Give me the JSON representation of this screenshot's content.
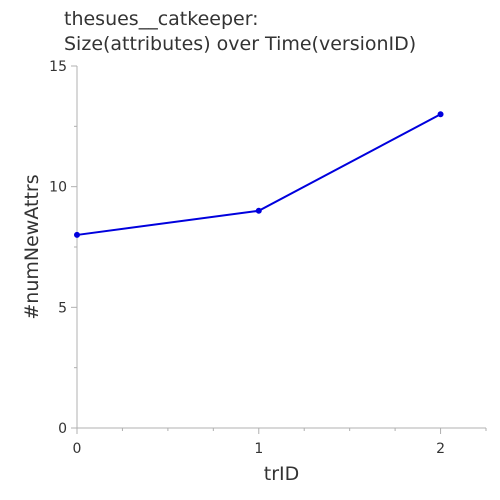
{
  "chart_data": {
    "type": "line",
    "title_line1": "thesues__catkeeper:",
    "title_line2": "Size(attributes) over Time(versionID)",
    "xlabel": "trID",
    "ylabel": "#numNewAttrs",
    "x": [
      0,
      1,
      2
    ],
    "series": [
      {
        "values": [
          8,
          9,
          13
        ],
        "color": "#0000dd"
      }
    ],
    "xlim": [
      0,
      2.25
    ],
    "ylim": [
      0,
      15
    ],
    "x_ticks": [
      0,
      1,
      2
    ],
    "x_minor_step": 0.25,
    "y_ticks": [
      0,
      5,
      10,
      15
    ],
    "y_minor_step": 2.5,
    "grid": false,
    "legend": "none"
  }
}
